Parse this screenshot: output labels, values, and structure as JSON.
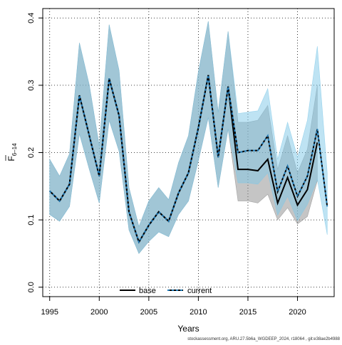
{
  "chart_data": {
    "type": "line",
    "xlabel": "Years",
    "ylabel": {
      "main": "F",
      "sub": "6–14"
    },
    "xlim": [
      1994.3,
      2023.7
    ],
    "ylim": [
      -0.014,
      0.414
    ],
    "x_ticks": [
      1995,
      2000,
      2005,
      2010,
      2015,
      2020
    ],
    "y_ticks": [
      0.0,
      0.1,
      0.2,
      0.3,
      0.4
    ],
    "grid": true,
    "legend_position": "bottom-left",
    "legend": [
      {
        "label": "base",
        "style": "solid",
        "color": "#000000"
      },
      {
        "label": "current",
        "style": "dashed",
        "color": "#1f78b4"
      }
    ],
    "x": [
      1995,
      1996,
      1997,
      1998,
      1999,
      2000,
      2001,
      2002,
      2003,
      2004,
      2005,
      2006,
      2007,
      2008,
      2009,
      2010,
      2011,
      2012,
      2013,
      2014,
      2015,
      2016,
      2017,
      2018,
      2019,
      2020,
      2021,
      2022,
      2023
    ],
    "series": [
      {
        "name": "base",
        "values": [
          0.143,
          0.128,
          0.153,
          0.285,
          0.225,
          0.165,
          0.31,
          0.255,
          0.112,
          0.067,
          0.092,
          0.112,
          0.098,
          0.14,
          0.17,
          0.237,
          0.315,
          0.193,
          0.298,
          0.175,
          0.175,
          0.173,
          0.19,
          0.125,
          0.163,
          0.122,
          0.145,
          0.215,
          null
        ],
        "upper": [
          0.19,
          0.165,
          0.198,
          0.363,
          0.3,
          0.21,
          0.39,
          0.322,
          0.148,
          0.09,
          0.128,
          0.148,
          0.13,
          0.185,
          0.225,
          0.32,
          0.395,
          0.26,
          0.38,
          0.245,
          0.245,
          0.248,
          0.27,
          0.175,
          0.225,
          0.17,
          0.205,
          0.3,
          null
        ],
        "lower": [
          0.108,
          0.098,
          0.12,
          0.228,
          0.175,
          0.125,
          0.248,
          0.202,
          0.085,
          0.05,
          0.068,
          0.082,
          0.075,
          0.108,
          0.128,
          0.188,
          0.252,
          0.148,
          0.235,
          0.128,
          0.128,
          0.125,
          0.138,
          0.1,
          0.118,
          0.094,
          0.105,
          0.158,
          null
        ],
        "band_color": "#8c8c8c"
      },
      {
        "name": "current",
        "values": [
          0.143,
          0.128,
          0.153,
          0.285,
          0.225,
          0.165,
          0.31,
          0.255,
          0.112,
          0.067,
          0.092,
          0.112,
          0.098,
          0.14,
          0.17,
          0.237,
          0.315,
          0.193,
          0.298,
          0.2,
          0.203,
          0.203,
          0.225,
          0.142,
          0.18,
          0.135,
          0.165,
          0.235,
          0.12
        ],
        "upper": [
          0.19,
          0.165,
          0.198,
          0.363,
          0.3,
          0.21,
          0.39,
          0.322,
          0.148,
          0.09,
          0.128,
          0.148,
          0.13,
          0.185,
          0.225,
          0.32,
          0.395,
          0.26,
          0.38,
          0.258,
          0.26,
          0.262,
          0.295,
          0.19,
          0.245,
          0.193,
          0.248,
          0.358,
          0.17
        ],
        "lower": [
          0.108,
          0.098,
          0.12,
          0.228,
          0.175,
          0.125,
          0.248,
          0.202,
          0.085,
          0.05,
          0.068,
          0.082,
          0.075,
          0.108,
          0.128,
          0.188,
          0.252,
          0.148,
          0.235,
          0.155,
          0.155,
          0.153,
          0.17,
          0.107,
          0.135,
          0.099,
          0.123,
          0.16,
          0.078
        ],
        "band_color": "#7ec8e8"
      }
    ]
  },
  "footer": "stockassessment.org, ARU.27.5b6a_WGDEEP_2024, r18064 , git:e38ae2b4988"
}
